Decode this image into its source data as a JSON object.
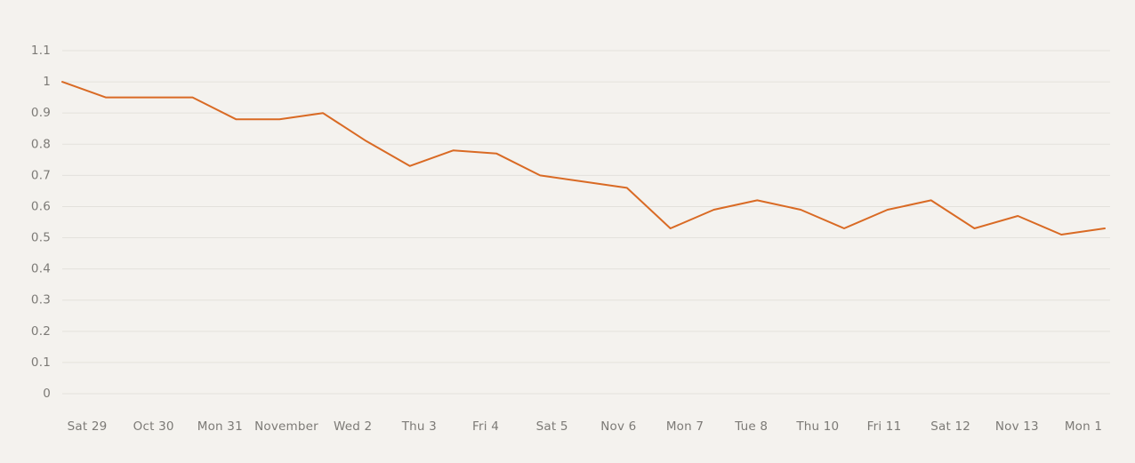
{
  "chart_data": {
    "type": "line",
    "title": "",
    "xlabel": "",
    "ylabel": "",
    "ylim": [
      0,
      1.1
    ],
    "y_ticks": [
      "0",
      "0.1",
      "0.2",
      "0.3",
      "0.4",
      "0.5",
      "0.6",
      "0.7",
      "0.8",
      "0.9",
      "1",
      "1.1"
    ],
    "x_tick_labels": [
      "Sat 29",
      "Oct 30",
      "Mon 31",
      "November",
      "Wed 2",
      "Thu 3",
      "Fri 4",
      "Sat 5",
      "Nov 6",
      "Mon 7",
      "Tue 8",
      "Thu 10",
      "Fri 11",
      "Sat 12",
      "Nov 13",
      "Mon 1"
    ],
    "grid": "horizontal",
    "legend": "none",
    "series": [
      {
        "color": "#d96a24",
        "values": [
          1.0,
          0.95,
          0.95,
          0.95,
          0.88,
          0.88,
          0.9,
          0.81,
          0.73,
          0.78,
          0.77,
          0.7,
          0.68,
          0.66,
          0.53,
          0.59,
          0.62,
          0.59,
          0.53,
          0.59,
          0.62,
          0.53,
          0.57,
          0.51,
          0.53
        ]
      }
    ]
  }
}
